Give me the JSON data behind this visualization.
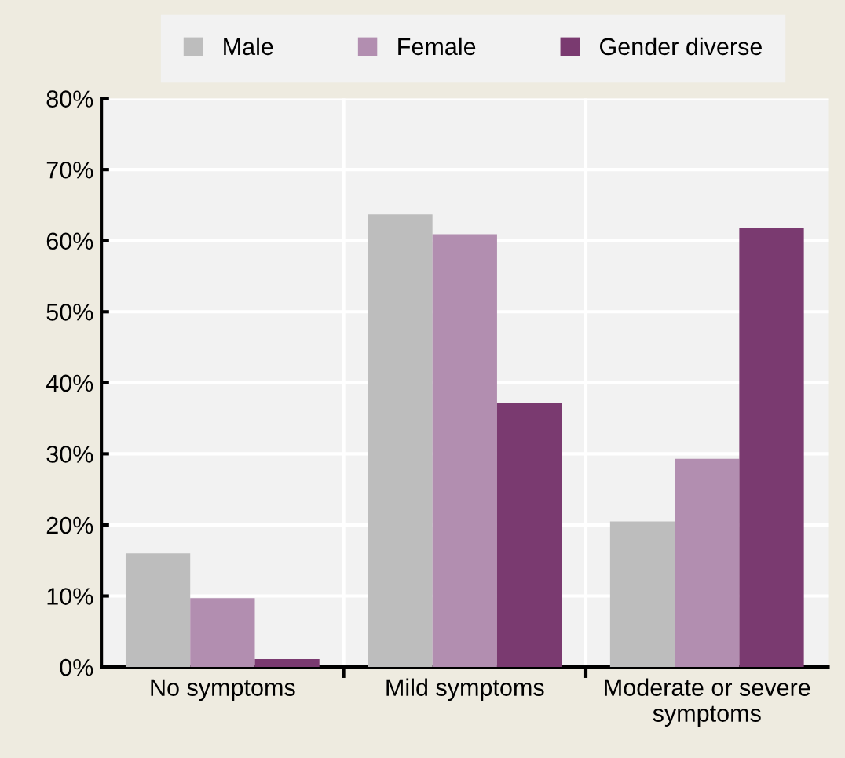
{
  "chart_data": {
    "type": "bar",
    "categories": [
      "No symptoms",
      "Mild symptoms",
      "Moderate or severe symptoms"
    ],
    "series": [
      {
        "name": "Male",
        "color": "#bdbdbd",
        "values": [
          16,
          63.7,
          20.5
        ]
      },
      {
        "name": "Female",
        "color": "#b28eb0",
        "values": [
          9.7,
          60.9,
          29.3
        ]
      },
      {
        "name": "Gender diverse",
        "color": "#7a3a70",
        "values": [
          1.1,
          37.2,
          61.8
        ]
      }
    ],
    "ylim": [
      0,
      80
    ],
    "yticks": [
      {
        "value": 0,
        "label": "0%"
      },
      {
        "value": 10,
        "label": "10%"
      },
      {
        "value": 20,
        "label": "20%"
      },
      {
        "value": 30,
        "label": "30%"
      },
      {
        "value": 40,
        "label": "40%"
      },
      {
        "value": 50,
        "label": "50%"
      },
      {
        "value": 60,
        "label": "60%"
      },
      {
        "value": 70,
        "label": "70%"
      },
      {
        "value": 80,
        "label": "80%"
      }
    ],
    "grid": true,
    "legend": "top"
  }
}
